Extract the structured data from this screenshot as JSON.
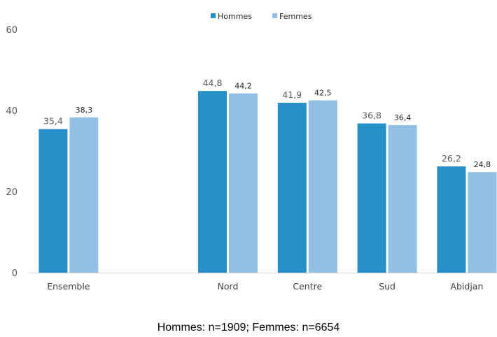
{
  "chart_data": {
    "type": "bar",
    "categories": [
      "Ensemble",
      "",
      "Nord",
      "Centre",
      "Sud",
      "Abidjan"
    ],
    "series": [
      {
        "name": "Hommes",
        "values": [
          35.4,
          null,
          44.8,
          41.9,
          36.8,
          26.2
        ],
        "labels": [
          "35,4",
          "",
          "44,8",
          "41,9",
          "36,8",
          "26,2"
        ],
        "color": "#2590c8"
      },
      {
        "name": "Femmes",
        "values": [
          38.3,
          null,
          44.2,
          42.5,
          36.4,
          24.8
        ],
        "labels": [
          "38,3",
          "",
          "44,2",
          "42,5",
          "36,4",
          "24,8"
        ],
        "color": "#93bfe5"
      }
    ],
    "y_ticks": [
      0,
      20,
      40,
      60
    ],
    "ylim": [
      0,
      60
    ],
    "grid": false,
    "legend_position": "top-center",
    "axis_color": "#d9d9d9"
  },
  "footnote": "Hommes: n=1909; Femmes: n=6654"
}
